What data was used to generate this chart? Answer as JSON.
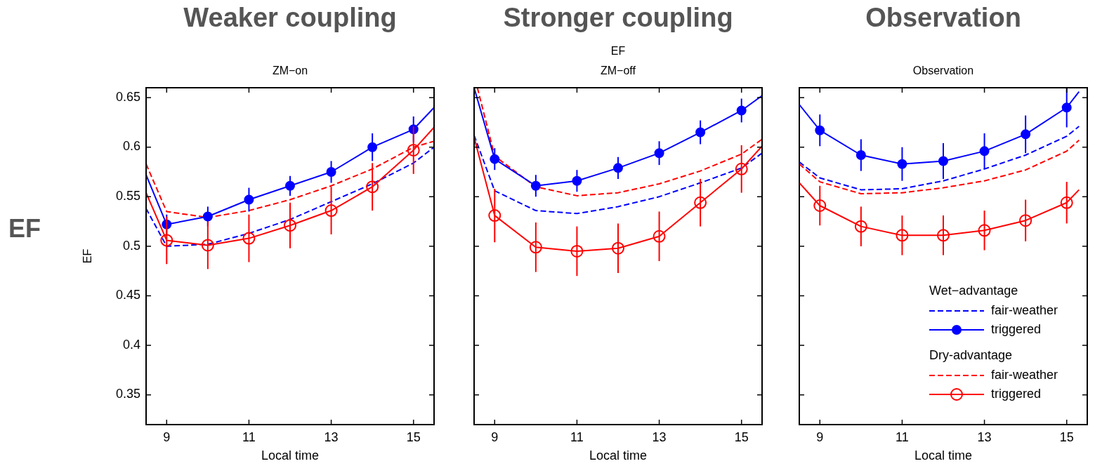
{
  "chart_data": [
    {
      "type": "line",
      "title": "Weaker coupling",
      "subtitle": "ZM−on",
      "xlabel": "Local time",
      "ylabel": "EF",
      "annotations": [
        "EF"
      ],
      "xlim": [
        8.5,
        15.5
      ],
      "ylim": [
        0.32,
        0.66
      ],
      "xticks": [
        9,
        11,
        13,
        15
      ],
      "yticks": [
        0.35,
        0.4,
        0.45,
        0.5,
        0.55,
        0.6,
        0.65
      ],
      "legend": false,
      "x": [
        8.5,
        9,
        10,
        11,
        12,
        13,
        14,
        15,
        15.5
      ],
      "series": [
        {
          "color": "#0000ff",
          "line_style": "dashed",
          "marker": "none",
          "values": [
            0.538,
            0.5,
            0.502,
            0.513,
            0.527,
            0.545,
            0.563,
            0.584,
            0.6
          ]
        },
        {
          "color": "#0000ff",
          "line_style": "solid",
          "marker": "circle",
          "values": [
            0.572,
            0.522,
            0.53,
            0.547,
            0.561,
            0.575,
            0.6,
            0.618,
            0.64
          ],
          "errors": [
            null,
            0.01,
            0.01,
            0.012,
            0.01,
            0.011,
            0.014,
            0.013,
            null
          ]
        },
        {
          "color": "#ff0000",
          "line_style": "dashed",
          "marker": "none",
          "values": [
            0.583,
            0.535,
            0.529,
            0.536,
            0.547,
            0.561,
            0.578,
            0.6,
            0.606
          ]
        },
        {
          "color": "#ff0000",
          "line_style": "solid",
          "marker": "circle",
          "values": [
            0.554,
            0.506,
            0.501,
            0.508,
            0.521,
            0.536,
            0.56,
            0.597,
            0.62
          ],
          "errors": [
            null,
            0.024,
            0.024,
            0.024,
            0.023,
            0.024,
            0.024,
            0.024,
            null
          ]
        }
      ]
    },
    {
      "type": "line",
      "title": "Stronger coupling",
      "subtitle": "ZM−off",
      "xlabel": "Local time",
      "annotations": [
        "EF"
      ],
      "xlim": [
        8.5,
        15.5
      ],
      "ylim": [
        0.32,
        0.66
      ],
      "xticks": [
        9,
        11,
        13,
        15
      ],
      "yticks": [
        0.35,
        0.4,
        0.45,
        0.5,
        0.55,
        0.6,
        0.65
      ],
      "tick_labels": "x",
      "legend": false,
      "x": [
        8.5,
        9,
        10,
        11,
        12,
        13,
        14,
        15,
        15.5
      ],
      "series": [
        {
          "color": "#0000ff",
          "line_style": "dashed",
          "marker": "none",
          "values": [
            0.612,
            0.556,
            0.536,
            0.533,
            0.54,
            0.55,
            0.564,
            0.579,
            0.594
          ]
        },
        {
          "color": "#0000ff",
          "line_style": "solid",
          "marker": "circle",
          "values": [
            0.66,
            0.588,
            0.561,
            0.566,
            0.579,
            0.594,
            0.615,
            0.637,
            0.652
          ],
          "errors": [
            null,
            0.011,
            0.011,
            0.011,
            0.011,
            0.012,
            0.012,
            0.012,
            null
          ]
        },
        {
          "color": "#ff0000",
          "line_style": "dashed",
          "marker": "none",
          "x": [
            8.58,
            9,
            10,
            11,
            12,
            13,
            14,
            15,
            15.5
          ],
          "values": [
            0.66,
            0.591,
            0.56,
            0.551,
            0.554,
            0.563,
            0.576,
            0.593,
            0.608
          ]
        },
        {
          "color": "#ff0000",
          "line_style": "solid",
          "marker": "circle",
          "values": [
            0.61,
            0.531,
            0.499,
            0.495,
            0.498,
            0.51,
            0.544,
            0.578,
            0.601
          ],
          "errors": [
            null,
            0.027,
            0.025,
            0.025,
            0.025,
            0.025,
            0.024,
            0.024,
            null
          ]
        }
      ]
    },
    {
      "type": "line",
      "title": "Observation",
      "subtitle": "Observation",
      "xlabel": "Local time",
      "annotations": [
        "Wet−advantage",
        "Dry-advantage"
      ],
      "xlim": [
        8.5,
        15.5
      ],
      "ylim": [
        0.32,
        0.66
      ],
      "xticks": [
        9,
        11,
        13,
        15
      ],
      "yticks": [
        0.35,
        0.4,
        0.45,
        0.5,
        0.55,
        0.6,
        0.65
      ],
      "tick_labels": "x",
      "legend": "bottom right",
      "x": [
        8.5,
        9,
        10,
        11,
        12,
        13,
        14,
        15,
        15.3
      ],
      "series": [
        {
          "name": "fair-weather",
          "color": "#0000ff",
          "line_style": "dashed",
          "marker": "none",
          "values": [
            0.585,
            0.569,
            0.557,
            0.558,
            0.566,
            0.578,
            0.592,
            0.611,
            0.621
          ]
        },
        {
          "name": "triggered",
          "color": "#0000ff",
          "line_style": "solid",
          "marker": "circle",
          "values": [
            0.643,
            0.617,
            0.592,
            0.583,
            0.586,
            0.596,
            0.613,
            0.64,
            0.656
          ],
          "errors": [
            null,
            0.016,
            0.016,
            0.017,
            0.018,
            0.018,
            0.019,
            0.02,
            null
          ]
        },
        {
          "name": "fair-weather",
          "color": "#ff0000",
          "line_style": "dashed",
          "marker": "none",
          "values": [
            0.583,
            0.565,
            0.553,
            0.554,
            0.559,
            0.566,
            0.577,
            0.596,
            0.607
          ]
        },
        {
          "name": "triggered",
          "color": "#ff0000",
          "line_style": "solid",
          "marker": "circle",
          "values": [
            0.564,
            0.541,
            0.52,
            0.511,
            0.511,
            0.516,
            0.526,
            0.544,
            0.557
          ],
          "errors": [
            null,
            0.02,
            0.02,
            0.02,
            0.02,
            0.02,
            0.021,
            0.021,
            null
          ]
        }
      ]
    }
  ]
}
